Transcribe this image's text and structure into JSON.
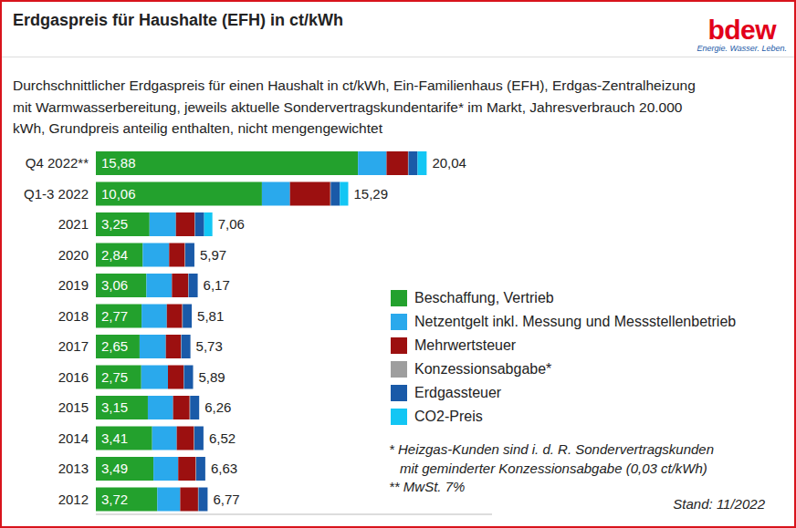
{
  "chart_data": {
    "type": "bar",
    "orientation": "horizontal",
    "stacked": true,
    "data_labels": true,
    "tick_labels": "y",
    "grid": false,
    "title": "Erdgaspreis für Haushalte (EFH) in ct/kWh",
    "subtitle": [
      "Durchschnittlicher Erdgaspreis für einen Haushalt in ct/kWh, Ein-Familienhaus (EFH), Erdgas-Zentralheizung",
      "mit Warmwasserbereitung, jeweils aktuelle Sondervertragskundentarife* im Markt, Jahresverbrauch 20.000",
      "kWh, Grundpreis anteilig enthalten, nicht mengengewichtet"
    ],
    "logo": {
      "name": "bdew",
      "tagline": "Energie. Wasser. Leben."
    },
    "categories": [
      "Q4 2022**",
      "Q1-3 2022",
      "2021",
      "2020",
      "2019",
      "2018",
      "2017",
      "2016",
      "2015",
      "2014",
      "2013",
      "2012"
    ],
    "xlim": [
      0,
      24
    ],
    "series": [
      {
        "name": "Beschaffung, Vertrieb",
        "color": "#23a12d",
        "values": [
          15.88,
          10.06,
          3.25,
          2.84,
          3.06,
          2.77,
          2.65,
          2.75,
          3.15,
          3.41,
          3.49,
          3.72
        ],
        "value_labels": [
          "15,88",
          "10,06",
          "3,25",
          "2,84",
          "3,06",
          "2,77",
          "2,65",
          "2,75",
          "3,15",
          "3,41",
          "3,49",
          "3,72"
        ]
      },
      {
        "name": "Netzentgelt inkl. Messung und Messstellenbetrieb",
        "color": "#2aa9ec",
        "values": [
          1.73,
          1.7,
          1.6,
          1.6,
          1.55,
          1.53,
          1.59,
          1.62,
          1.53,
          1.49,
          1.5,
          1.39
        ]
      },
      {
        "name": "Mehrwertsteuer",
        "color": "#9c1010",
        "values": [
          1.3,
          2.44,
          1.13,
          0.95,
          0.98,
          0.93,
          0.91,
          0.94,
          1.0,
          1.04,
          1.06,
          1.08
        ]
      },
      {
        "name": "Konzessionsabgabe*",
        "color": "#9e9e9e",
        "values": [
          0.03,
          0.03,
          0.03,
          0.03,
          0.03,
          0.03,
          0.03,
          0.03,
          0.03,
          0.03,
          0.03,
          0.03
        ]
      },
      {
        "name": "Erdgassteuer",
        "color": "#1a5aa8",
        "values": [
          0.55,
          0.55,
          0.55,
          0.55,
          0.55,
          0.55,
          0.55,
          0.55,
          0.55,
          0.55,
          0.55,
          0.55
        ]
      },
      {
        "name": "CO2-Preis",
        "color": "#13c6f4",
        "values": [
          0.55,
          0.51,
          0.5,
          0,
          0,
          0,
          0,
          0,
          0,
          0,
          0,
          0
        ]
      }
    ],
    "totals": [
      20.04,
      15.29,
      7.06,
      5.97,
      6.17,
      5.81,
      5.73,
      5.89,
      6.26,
      6.52,
      6.63,
      6.77
    ],
    "total_labels": [
      "20,04",
      "15,29",
      "7,06",
      "5,97",
      "6,17",
      "5,81",
      "5,73",
      "5,89",
      "6,26",
      "6,52",
      "6,63",
      "6,77"
    ],
    "footnotes": [
      "* Heizgas-Kunden sind i. d. R. Sondervertragskunden",
      "mit geminderter Konzessionsabgabe (0,03 ct/kWh)",
      "**  MwSt. 7%"
    ],
    "source_note": "Stand: 11/2022"
  }
}
